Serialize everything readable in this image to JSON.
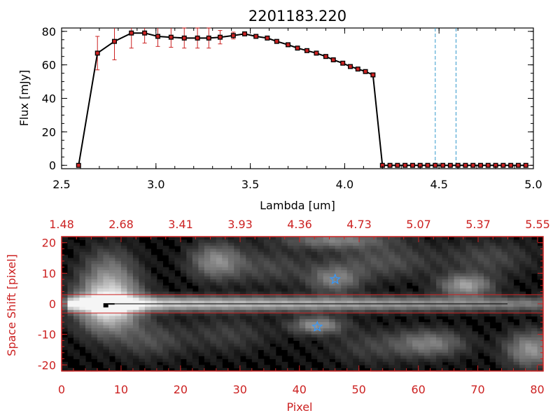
{
  "chart_data": [
    {
      "type": "line",
      "title": "2201183.220",
      "xlabel": "Lambda [um]",
      "ylabel": "Flux [mJy]",
      "xlim": [
        2.5,
        5.0
      ],
      "ylim": [
        -2,
        82
      ],
      "xticks": [
        "2.5",
        "3.0",
        "3.5",
        "4.0",
        "4.5",
        "5.0"
      ],
      "yticks": [
        "0",
        "20",
        "40",
        "60",
        "80"
      ],
      "grid": false,
      "colors": {
        "line": "#000000",
        "marker": "#cc2222",
        "errorbar": "#cc2222",
        "vline": "#3399cc"
      },
      "x": [
        2.59,
        2.69,
        2.78,
        2.87,
        2.94,
        3.01,
        3.08,
        3.15,
        3.22,
        3.28,
        3.34,
        3.41,
        3.47,
        3.53,
        3.59,
        3.64,
        3.7,
        3.75,
        3.8,
        3.85,
        3.9,
        3.94,
        3.99,
        4.03,
        4.07,
        4.11,
        4.15,
        4.2,
        4.24,
        4.28,
        4.32,
        4.36,
        4.4,
        4.44,
        4.48,
        4.52,
        4.56,
        4.6,
        4.64,
        4.68,
        4.72,
        4.76,
        4.8,
        4.84,
        4.88,
        4.92,
        4.96
      ],
      "y": [
        0,
        67,
        74,
        79,
        79,
        77,
        76.5,
        76,
        76,
        76,
        76.5,
        77.5,
        78.5,
        77,
        76,
        74,
        72,
        70,
        68.5,
        67,
        65,
        63,
        61,
        59,
        57.5,
        56,
        54,
        0,
        0,
        0,
        0,
        0,
        0,
        0,
        0,
        0,
        0,
        0,
        0,
        0,
        0,
        0,
        0,
        0,
        0,
        0,
        0
      ],
      "yerr": [
        0,
        10,
        11,
        9,
        6,
        6,
        6,
        6,
        6,
        6,
        4,
        2,
        1,
        0,
        0,
        0,
        0,
        0,
        0,
        0,
        0,
        0,
        0,
        0,
        0,
        0,
        0,
        0,
        0,
        0,
        0,
        0,
        0,
        0,
        0,
        0,
        0,
        0,
        0,
        0,
        0,
        0,
        0,
        0,
        0,
        0,
        0
      ],
      "vlines": [
        4.48,
        4.59
      ]
    },
    {
      "type": "heatmap",
      "xlabel": "Pixel",
      "ylabel": "Space Shift [pixel]",
      "xlim": [
        0,
        81
      ],
      "ylim": [
        -22,
        22
      ],
      "xticks": [
        "0",
        "10",
        "20",
        "30",
        "40",
        "50",
        "60",
        "70",
        "80"
      ],
      "yticks": [
        "-20",
        "-10",
        "0",
        "10",
        "20"
      ],
      "top_ticks": [
        "1.48",
        "2.68",
        "3.41",
        "3.93",
        "4.36",
        "4.73",
        "5.07",
        "5.37",
        "5.55"
      ],
      "colormap": "grayscale",
      "colors": {
        "axes": "#cc2222",
        "star": "#3399ff",
        "trace": "#000000"
      },
      "hlines": [
        3,
        -3
      ],
      "stars": [
        {
          "x": 46,
          "y": 8
        },
        {
          "x": 43,
          "y": -7.5
        }
      ],
      "marker": {
        "x": 7.5,
        "y": -0.5
      },
      "trace_y": 0,
      "blobs": [
        {
          "x": 8,
          "y": 0,
          "sx": 3.5,
          "sy": 6,
          "v": 1.0
        },
        {
          "x": 26,
          "y": 14,
          "sx": 3,
          "sy": 4,
          "v": 0.45
        },
        {
          "x": 46,
          "y": 21,
          "sx": 6,
          "sy": 2,
          "v": 0.4
        },
        {
          "x": 46,
          "y": 8,
          "sx": 3,
          "sy": 3,
          "v": 0.4
        },
        {
          "x": 43,
          "y": -7,
          "sx": 3,
          "sy": 2,
          "v": 0.5
        },
        {
          "x": 68,
          "y": 6,
          "sx": 3,
          "sy": 2.5,
          "v": 0.55
        },
        {
          "x": 62,
          "y": -13,
          "sx": 4,
          "sy": 3,
          "v": 0.4
        },
        {
          "x": 79,
          "y": -15,
          "sx": 3,
          "sy": 4,
          "v": 0.5
        },
        {
          "x": 8,
          "y": 12,
          "sx": 3,
          "sy": 5,
          "v": 0.25
        },
        {
          "x": 15,
          "y": -12,
          "sx": 4,
          "sy": 4,
          "v": 0.2
        },
        {
          "x": 35,
          "y": 12,
          "sx": 5,
          "sy": 4,
          "v": 0.18
        },
        {
          "x": 54,
          "y": 14,
          "sx": 6,
          "sy": 4,
          "v": 0.22
        },
        {
          "x": 28,
          "y": -10,
          "sx": 5,
          "sy": 4,
          "v": 0.15
        },
        {
          "x": 52,
          "y": -14,
          "sx": 5,
          "sy": 4,
          "v": 0.15
        },
        {
          "x": 72,
          "y": 15,
          "sx": 5,
          "sy": 4,
          "v": 0.18
        }
      ]
    }
  ]
}
